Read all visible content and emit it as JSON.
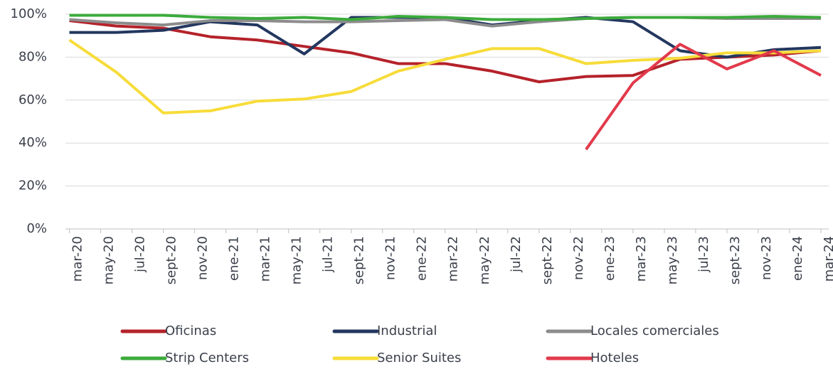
{
  "chart_data": {
    "type": "line",
    "x": [
      0,
      3,
      6,
      9,
      12,
      15,
      18,
      21,
      24,
      27,
      30,
      33,
      36,
      39,
      42,
      45,
      48
    ],
    "xlim": [
      -0.25,
      48.5
    ],
    "xticks": [
      {
        "value": 0,
        "label": "mar-20"
      },
      {
        "value": 2,
        "label": "may-20"
      },
      {
        "value": 4,
        "label": "jul-20"
      },
      {
        "value": 6,
        "label": "sept-20"
      },
      {
        "value": 8,
        "label": "nov-20"
      },
      {
        "value": 10,
        "label": "ene-21"
      },
      {
        "value": 12,
        "label": "mar-21"
      },
      {
        "value": 14,
        "label": "may-21"
      },
      {
        "value": 16,
        "label": "jul-21"
      },
      {
        "value": 18,
        "label": "sept-21"
      },
      {
        "value": 20,
        "label": "nov-21"
      },
      {
        "value": 22,
        "label": "ene-22"
      },
      {
        "value": 24,
        "label": "mar-22"
      },
      {
        "value": 26,
        "label": "may-22"
      },
      {
        "value": 28,
        "label": "jul-22"
      },
      {
        "value": 30,
        "label": "sept-22"
      },
      {
        "value": 32,
        "label": "nov-22"
      },
      {
        "value": 34,
        "label": "ene-23"
      },
      {
        "value": 36,
        "label": "mar-23"
      },
      {
        "value": 38,
        "label": "may-23"
      },
      {
        "value": 40,
        "label": "jul-23"
      },
      {
        "value": 42,
        "label": "sept-23"
      },
      {
        "value": 44,
        "label": "nov-23"
      },
      {
        "value": 46,
        "label": "ene-24"
      },
      {
        "value": 48,
        "label": "mar-24"
      }
    ],
    "ylim": [
      0,
      100
    ],
    "yticks": [
      {
        "value": 0,
        "label": "0%"
      },
      {
        "value": 20,
        "label": "20%"
      },
      {
        "value": 40,
        "label": "40%"
      },
      {
        "value": 60,
        "label": "60%"
      },
      {
        "value": 80,
        "label": "80%"
      },
      {
        "value": 100,
        "label": "100%"
      }
    ],
    "grid": true,
    "legend": "bottom",
    "series": [
      {
        "name": "Oficinas",
        "color": "#b5222a",
        "values": [
          97,
          94.5,
          93.5,
          89.5,
          88,
          85,
          82,
          77,
          77,
          73.5,
          68.5,
          71,
          71.5,
          79,
          80,
          81,
          83
        ]
      },
      {
        "name": "Industrial",
        "color": "#23375f",
        "values": [
          91.5,
          91.5,
          92.5,
          96.5,
          95,
          81.5,
          98.5,
          98.5,
          98.5,
          95,
          97,
          98.5,
          96.5,
          83,
          80,
          83.5,
          84.5
        ]
      },
      {
        "name": "Locales comerciales",
        "color": "#8c8c8c",
        "values": [
          97.5,
          96,
          95,
          97,
          97,
          96.5,
          96.5,
          97,
          97.5,
          94.5,
          96.5,
          98,
          98.5,
          98.5,
          98,
          98,
          98
        ]
      },
      {
        "name": "Strip Centers",
        "color": "#3cab3c",
        "values": [
          99.5,
          99.5,
          99.5,
          98.5,
          98,
          98.5,
          97.5,
          99,
          98.5,
          97.5,
          97.5,
          98,
          98.5,
          98.5,
          98.5,
          99,
          98.5
        ]
      },
      {
        "name": "Senior Suites",
        "color": "#f7dc3a",
        "values": [
          88,
          73,
          54,
          55,
          59.5,
          60.5,
          64,
          73.5,
          79,
          84,
          84,
          77,
          78.5,
          79.5,
          82,
          82,
          83
        ]
      },
      {
        "name": "Hoteles",
        "color": "#e23a4c",
        "values": [
          null,
          null,
          null,
          null,
          null,
          null,
          null,
          null,
          null,
          null,
          null,
          37,
          68,
          86,
          74.5,
          83,
          71.5
        ]
      }
    ]
  }
}
